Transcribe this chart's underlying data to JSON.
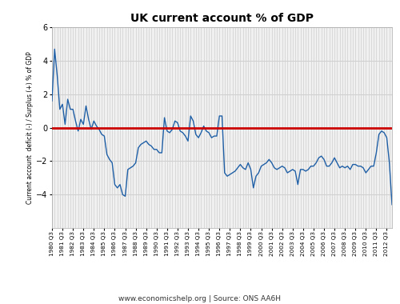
{
  "title": "UK current account % of GDP",
  "ylabel": "Current account  deficit (-) / Surplus (+) % of GDP",
  "footer": "www.economicshelp.org | Source: ONS AA6H",
  "ylim": [
    -6,
    6
  ],
  "yticks": [
    -4,
    -2,
    0,
    2,
    4,
    6
  ],
  "background_color": "#ffffff",
  "plot_bg_color": "#f0f0f0",
  "line_color": "#1F5FA6",
  "zero_line_color": "#CC0000",
  "grid_color": "#d0d0d0",
  "values": [
    1.6,
    4.7,
    3.1,
    1.1,
    1.4,
    0.2,
    1.7,
    1.1,
    1.1,
    0.4,
    -0.2,
    0.5,
    0.2,
    1.3,
    0.5,
    -0.1,
    0.4,
    0.1,
    -0.1,
    -0.4,
    -0.5,
    -1.6,
    -1.9,
    -2.1,
    -3.4,
    -3.6,
    -3.4,
    -4.0,
    -4.1,
    -2.5,
    -2.4,
    -2.3,
    -2.1,
    -1.2,
    -1.0,
    -0.9,
    -0.8,
    -1.0,
    -1.1,
    -1.3,
    -1.3,
    -1.5,
    -1.5,
    0.6,
    -0.2,
    -0.3,
    -0.1,
    0.4,
    0.3,
    -0.2,
    -0.3,
    -0.5,
    -0.8,
    0.7,
    0.4,
    -0.4,
    -0.6,
    -0.3,
    0.1,
    -0.2,
    -0.3,
    -0.6,
    -0.5,
    -0.5,
    0.7,
    0.7,
    -2.7,
    -2.9,
    -2.8,
    -2.7,
    -2.6,
    -2.4,
    -2.2,
    -2.4,
    -2.5,
    -2.1,
    -2.5,
    -3.6,
    -2.9,
    -2.7,
    -2.3,
    -2.2,
    -2.1,
    -1.9,
    -2.1,
    -2.4,
    -2.5,
    -2.4,
    -2.3,
    -2.4,
    -2.7,
    -2.6,
    -2.5,
    -2.6,
    -3.4,
    -2.5,
    -2.5,
    -2.6,
    -2.5,
    -2.3,
    -2.3,
    -2.1,
    -1.8,
    -1.7,
    -1.9,
    -2.3,
    -2.3,
    -2.1,
    -1.8,
    -2.1,
    -2.4,
    -2.3,
    -2.4,
    -2.3,
    -2.5,
    -2.2,
    -2.2,
    -2.3,
    -2.3,
    -2.4,
    -2.7,
    -2.5,
    -2.3,
    -2.3,
    -1.5,
    -0.4,
    -0.2,
    -0.3,
    -0.6,
    -2.1,
    -4.6
  ],
  "x_tick_labels": [
    "1980 Q3",
    "1981 Q3",
    "1982 Q3",
    "1983 Q3",
    "1984 Q3",
    "1985 Q3",
    "1986 Q3",
    "1987 Q3",
    "1988 Q3",
    "1989 Q3",
    "1990 Q3",
    "1991 Q3",
    "1992 Q3",
    "1993 Q3",
    "1994 Q3",
    "1995 Q3",
    "1996 Q3",
    "1997 Q3",
    "1998 Q3",
    "1999 Q3",
    "2000 Q3",
    "2001 Q3",
    "2002 Q3",
    "2003 Q3",
    "2004 Q3",
    "2005 Q3",
    "2006 Q3",
    "2007 Q3",
    "2008 Q3",
    "2009 Q3",
    "2010 Q3",
    "2011 Q3",
    "2012 Q3"
  ]
}
